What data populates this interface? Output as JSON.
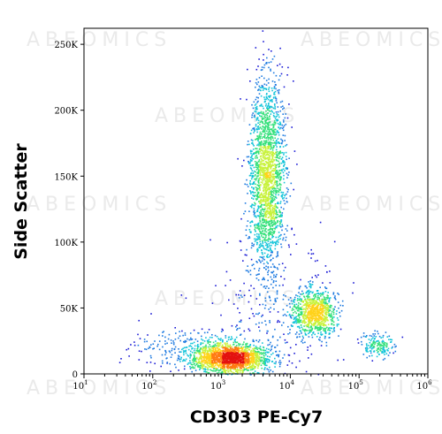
{
  "chart_data": {
    "type": "scatter",
    "title": "",
    "xlabel": "CD303 PE-Cy7",
    "ylabel": "Side Scatter",
    "x_scale": "log",
    "xlim": [
      10,
      1000000
    ],
    "ylim": [
      0,
      262144
    ],
    "x_ticks": [
      {
        "value": 10,
        "base": "10",
        "exp": "1"
      },
      {
        "value": 100,
        "base": "10",
        "exp": "2"
      },
      {
        "value": 1000,
        "base": "10",
        "exp": "3"
      },
      {
        "value": 10000,
        "base": "10",
        "exp": "4"
      },
      {
        "value": 100000,
        "base": "10",
        "exp": "5"
      },
      {
        "value": 1000000,
        "base": "10",
        "exp": "6"
      }
    ],
    "y_ticks": [
      {
        "value": 0,
        "label": "0"
      },
      {
        "value": 50000,
        "label": "50K"
      },
      {
        "value": 100000,
        "label": "100K"
      },
      {
        "value": 150000,
        "label": "150K"
      },
      {
        "value": 200000,
        "label": "200K"
      },
      {
        "value": 250000,
        "label": "250K"
      }
    ],
    "populations": [
      {
        "x_center": 4500,
        "y_center": 150000,
        "x_spread_decades": 0.13,
        "y_spread": 38000,
        "weight": 0.38
      },
      {
        "x_center": 1300,
        "y_center": 12000,
        "x_spread_decades": 0.28,
        "y_spread": 5500,
        "weight": 0.32
      },
      {
        "x_center": 22000,
        "y_center": 47000,
        "x_spread_decades": 0.16,
        "y_spread": 9000,
        "weight": 0.18
      },
      {
        "x_center": 180000,
        "y_center": 22000,
        "x_spread_decades": 0.12,
        "y_spread": 4000,
        "weight": 0.03
      },
      {
        "x_center": 5000,
        "y_center": 45000,
        "x_spread_decades": 0.5,
        "y_spread": 30000,
        "weight": 0.05
      },
      {
        "x_center": 300,
        "y_center": 20000,
        "x_spread_decades": 0.4,
        "y_spread": 8000,
        "weight": 0.04
      }
    ],
    "density_colors": [
      "#1b1bd6",
      "#1f7be0",
      "#12c4d9",
      "#34e07a",
      "#c8f23c",
      "#ffd21a",
      "#ff7a12",
      "#e3120f"
    ],
    "grid": false,
    "legend": "none"
  },
  "watermark": "ABEOMICS"
}
